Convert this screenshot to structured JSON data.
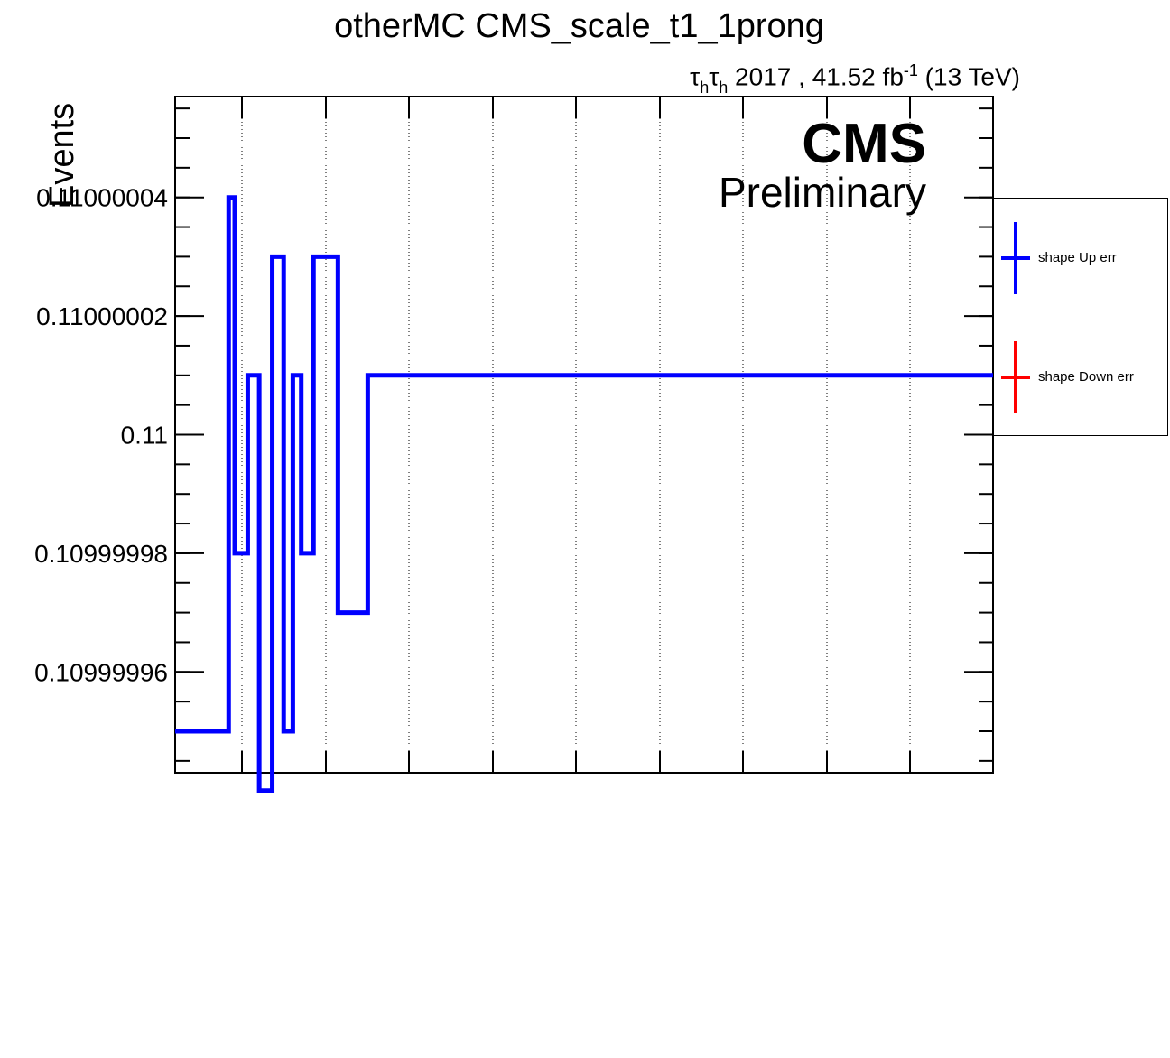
{
  "chart_data": {
    "type": "line",
    "title": "otherMC CMS_scale_t1_1prong",
    "subtitle": {
      "channel_tau": "τ",
      "channel_sub": "h",
      "year_lumi": " 2017 , 41.52 fb",
      "lumi_exp": "-1",
      "energy": " (13 TeV)"
    },
    "experiment": "CMS",
    "status": "Preliminary",
    "ylabel": "Events",
    "xlabel": "",
    "ylim": [
      0.109999943,
      0.110000057
    ],
    "yticks": [
      {
        "value": 0.10999996,
        "label": "0.10999996"
      },
      {
        "value": 0.10999998,
        "label": "0.10999998"
      },
      {
        "value": 0.11,
        "label": "0.11"
      },
      {
        "value": 0.11000002,
        "label": "0.11000002"
      },
      {
        "value": 0.11000004,
        "label": "0.11000004"
      }
    ],
    "grid": {
      "x": true,
      "y": false
    },
    "legend_position": "right",
    "series": [
      {
        "name": "shape Up err",
        "color": "#0000ff",
        "step": true,
        "bin_edges": [
          0,
          0.8,
          2.5,
          4.0,
          5.7,
          7.2,
          8.4,
          9.5,
          11.1,
          14.3,
          18.2,
          100
        ],
        "values": [
          0.10999995,
          0.11000004,
          0.10999998,
          0.11000001,
          0.10999994,
          0.11000003,
          0.10999995,
          0.11000001,
          0.10999998,
          0.11000003,
          0.10999997,
          0.11000001
        ]
      },
      {
        "name": "shape Down err",
        "color": "#ff0000",
        "step": true,
        "bin_edges": [],
        "values": []
      }
    ],
    "xlim": [
      -7.0,
      100
    ]
  },
  "legend": {
    "items": [
      {
        "label": "shape Up err",
        "color": "#0000ff"
      },
      {
        "label": "shape Down err",
        "color": "#ff0000"
      }
    ]
  }
}
